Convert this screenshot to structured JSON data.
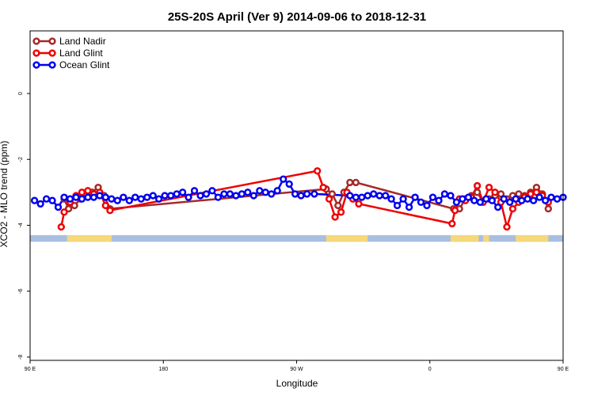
{
  "chart_data": {
    "type": "line",
    "title": "25S-20S April (Ver 9)   2014-09-06 to 2018-12-31",
    "xlabel": "Longitude",
    "ylabel": "XCO2 - MLO trend (ppm)",
    "xlim": [
      90,
      450
    ],
    "ylim": [
      -8.1,
      1.9
    ],
    "x_ticks": [
      {
        "value": 90,
        "label": "90 E"
      },
      {
        "value": 180,
        "label": "180"
      },
      {
        "value": 270,
        "label": "90 W"
      },
      {
        "value": 360,
        "label": "0"
      },
      {
        "value": 450,
        "label": "90 E"
      },
      {
        "value": 540,
        "label": "180"
      }
    ],
    "y_ticks": [
      {
        "value": 0,
        "label": "0"
      },
      {
        "value": -2,
        "label": "-2"
      },
      {
        "value": -4,
        "label": "-4"
      },
      {
        "value": -6,
        "label": "-6"
      },
      {
        "value": -8,
        "label": "-8"
      }
    ],
    "legend_position": "top-left",
    "land_strip": {
      "y_range": [
        -4.5,
        -4.3
      ],
      "ocean_color": "#a8bfe0",
      "land_color": "#f7d878",
      "land_segments": [
        [
          115,
          145
        ],
        [
          290,
          318
        ],
        [
          374,
          393
        ],
        [
          396,
          400
        ],
        [
          418,
          440
        ]
      ]
    },
    "series": [
      {
        "name": "Land Nadir",
        "color": "#a52a2a",
        "x": [
          113,
          116,
          120,
          124,
          128,
          132,
          136,
          140,
          144,
          290,
          294,
          298,
          302,
          306,
          310,
          376,
          380,
          384,
          388,
          392,
          396,
          400,
          404,
          408,
          412,
          416,
          420,
          424,
          428,
          432,
          436,
          440
        ],
        "y": [
          -3.2,
          -3.5,
          -3.4,
          -3.2,
          -3.1,
          -3.0,
          -2.85,
          -3.1,
          -3.5,
          -2.9,
          -3.05,
          -3.4,
          -3.0,
          -2.7,
          -2.7,
          -3.5,
          -3.5,
          -3.2,
          -3.1,
          -3.0,
          -3.3,
          -3.2,
          -3.1,
          -3.05,
          -3.2,
          -3.1,
          -3.05,
          -3.1,
          -3.0,
          -2.85,
          -3.05,
          -3.5
        ]
      },
      {
        "name": "Land Glint",
        "color": "#ee0000",
        "x": [
          111,
          113,
          117,
          121,
          125,
          129,
          133,
          137,
          141,
          144,
          284,
          288,
          292,
          296,
          300,
          304,
          308,
          312,
          375,
          377,
          380,
          384,
          388,
          392,
          396,
          400,
          404,
          408,
          412,
          416,
          420,
          424,
          428,
          432,
          436,
          440
        ],
        "y": [
          -4.05,
          -3.6,
          -3.3,
          -3.1,
          -3.0,
          -2.95,
          -3.05,
          -3.0,
          -3.4,
          -3.55,
          -2.35,
          -2.85,
          -3.2,
          -3.75,
          -3.6,
          -3.0,
          -3.2,
          -3.35,
          -3.95,
          -3.55,
          -3.2,
          -3.25,
          -3.15,
          -2.8,
          -3.3,
          -2.85,
          -3.0,
          -3.3,
          -4.05,
          -3.5,
          -3.3,
          -3.15,
          -3.05,
          -3.0,
          -3.1,
          -3.3
        ]
      },
      {
        "name": "Ocean Glint",
        "color": "#0000ee",
        "x": [
          93,
          97,
          101,
          105,
          109,
          113,
          117,
          121,
          125,
          129,
          133,
          137,
          141,
          145,
          149,
          153,
          157,
          161,
          165,
          169,
          173,
          177,
          181,
          185,
          189,
          193,
          197,
          201,
          205,
          209,
          213,
          217,
          221,
          225,
          229,
          233,
          237,
          241,
          245,
          249,
          253,
          257,
          261,
          265,
          269,
          273,
          277,
          282,
          306,
          310,
          314,
          318,
          322,
          326,
          330,
          334,
          338,
          342,
          346,
          350,
          354,
          358,
          362,
          366,
          370,
          374,
          378,
          382,
          386,
          390,
          394,
          398,
          402,
          406,
          410,
          414,
          418,
          422,
          426,
          430,
          434,
          438,
          442,
          446,
          450
        ],
        "y": [
          -3.25,
          -3.35,
          -3.2,
          -3.25,
          -3.45,
          -3.15,
          -3.2,
          -3.15,
          -3.2,
          -3.15,
          -3.15,
          -3.1,
          -3.15,
          -3.2,
          -3.25,
          -3.15,
          -3.25,
          -3.15,
          -3.2,
          -3.15,
          -3.1,
          -3.2,
          -3.1,
          -3.1,
          -3.05,
          -3.0,
          -3.15,
          -2.95,
          -3.1,
          -3.05,
          -2.95,
          -3.15,
          -3.05,
          -3.05,
          -3.1,
          -3.05,
          -3.0,
          -3.1,
          -2.95,
          -3.0,
          -3.05,
          -2.95,
          -2.6,
          -2.75,
          -3.05,
          -3.1,
          -3.05,
          -3.05,
          -3.1,
          -3.15,
          -3.15,
          -3.1,
          -3.05,
          -3.1,
          -3.1,
          -3.2,
          -3.4,
          -3.2,
          -3.45,
          -3.15,
          -3.3,
          -3.4,
          -3.15,
          -3.25,
          -3.05,
          -3.1,
          -3.3,
          -3.2,
          -3.15,
          -3.25,
          -3.3,
          -3.2,
          -3.25,
          -3.45,
          -3.2,
          -3.3,
          -3.2,
          -3.25,
          -3.2,
          -3.25,
          -3.15,
          -3.25,
          -3.15,
          -3.2,
          -3.15
        ]
      }
    ]
  }
}
